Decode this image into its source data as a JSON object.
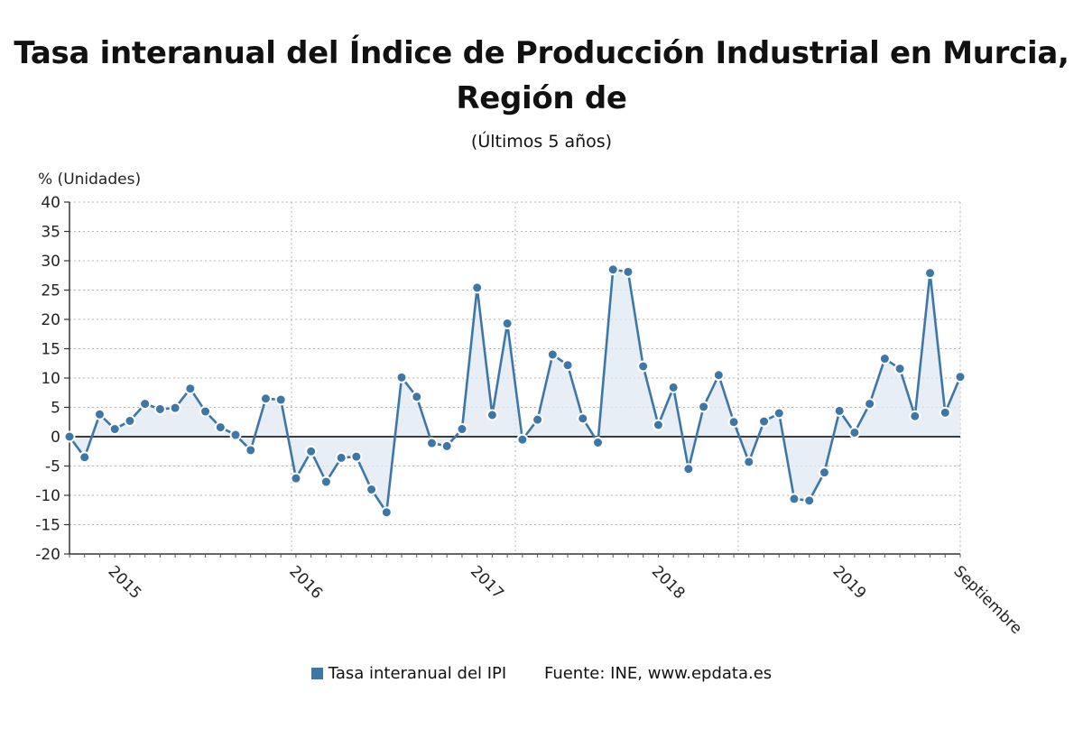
{
  "chart_data": {
    "type": "line",
    "title": "Tasa interanual del Índice de Producción Industrial en Murcia, Región de",
    "subtitle": "(Últimos 5 años)",
    "ylabel": "% (Unidades)",
    "ylim": [
      -20,
      40
    ],
    "yticks": [
      40,
      35,
      30,
      25,
      20,
      15,
      10,
      5,
      0,
      -5,
      -10,
      -15,
      -20
    ],
    "xtick_labels": [
      {
        "label": "2015",
        "index": 3
      },
      {
        "label": "2016",
        "index": 15
      },
      {
        "label": "2017",
        "index": 27
      },
      {
        "label": "2018",
        "index": 39
      },
      {
        "label": "2019",
        "index": 51
      },
      {
        "label": "Septiembre",
        "index": 59
      }
    ],
    "grid": true,
    "area_fill": true,
    "series": [
      {
        "name": "Tasa interanual del IPI",
        "color": "#3d77a8",
        "values": [
          0,
          -3.5,
          3.8,
          1.3,
          2.7,
          5.6,
          4.7,
          4.9,
          8.2,
          4.3,
          1.6,
          0.3,
          -2.3,
          6.5,
          6.3,
          -7.1,
          -2.5,
          -7.7,
          -3.6,
          -3.4,
          -9.0,
          -12.9,
          10.1,
          6.8,
          -1.1,
          -1.6,
          1.3,
          25.4,
          3.7,
          19.3,
          -0.5,
          2.9,
          14.0,
          12.2,
          3.1,
          -1.0,
          28.5,
          28.1,
          12.0,
          2.0,
          8.4,
          -5.5,
          5.1,
          10.5,
          2.5,
          -4.3,
          2.6,
          4.0,
          -10.6,
          -10.9,
          -6.1,
          4.4,
          0.7,
          5.6,
          13.3,
          11.6,
          3.5,
          27.9,
          4.1,
          10.2
        ]
      }
    ]
  },
  "legend": {
    "series_label": "Tasa interanual del IPI",
    "source": "Fuente: INE, www.epdata.es"
  }
}
